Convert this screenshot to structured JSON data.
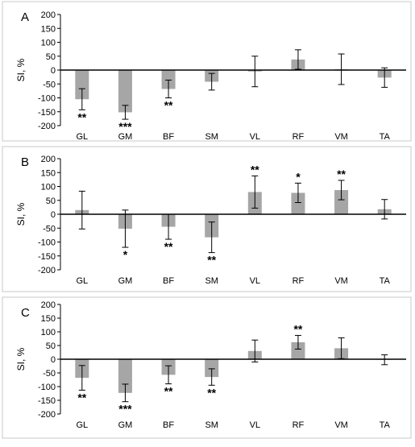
{
  "chart_data": [
    {
      "type": "bar",
      "panel_label": "A",
      "categories": [
        "GL",
        "GM",
        "BF",
        "SM",
        "VL",
        "RF",
        "VM",
        "TA"
      ],
      "values": [
        -105,
        -152,
        -68,
        -42,
        -5,
        38,
        3,
        -27
      ],
      "errors": [
        38,
        25,
        32,
        30,
        55,
        35,
        55,
        35
      ],
      "significance": [
        "**",
        "***",
        "**",
        "",
        "",
        "",
        "",
        ""
      ],
      "ylabel": "SI, %",
      "ylim": [
        -200,
        200
      ],
      "yticks": [
        -200,
        -150,
        -100,
        -50,
        0,
        50,
        100,
        150,
        200
      ],
      "bar_color": "#a6a6a6"
    },
    {
      "type": "bar",
      "panel_label": "B",
      "categories": [
        "GL",
        "GM",
        "BF",
        "SM",
        "VL",
        "RF",
        "VM",
        "TA"
      ],
      "values": [
        15,
        -52,
        -45,
        -83,
        80,
        77,
        87,
        18
      ],
      "errors": [
        68,
        67,
        45,
        55,
        58,
        35,
        35,
        35
      ],
      "significance": [
        "",
        "*",
        "**",
        "**",
        "**",
        "*",
        "**",
        ""
      ],
      "ylabel": "SI, %",
      "ylim": [
        -200,
        200
      ],
      "yticks": [
        -200,
        -150,
        -100,
        -50,
        0,
        50,
        100,
        150,
        200
      ],
      "bar_color": "#a6a6a6"
    },
    {
      "type": "bar",
      "panel_label": "C",
      "categories": [
        "GL",
        "GM",
        "BF",
        "SM",
        "VL",
        "RF",
        "VM",
        "TA"
      ],
      "values": [
        -68,
        -123,
        -57,
        -65,
        30,
        62,
        40,
        -2
      ],
      "errors": [
        45,
        32,
        33,
        30,
        40,
        25,
        38,
        18
      ],
      "significance": [
        "**",
        "***",
        "**",
        "**",
        "",
        "**",
        "",
        ""
      ],
      "ylabel": "SI, %",
      "ylim": [
        -200,
        200
      ],
      "yticks": [
        -200,
        -150,
        -100,
        -50,
        0,
        50,
        100,
        150,
        200
      ],
      "bar_color": "#a6a6a6"
    }
  ]
}
